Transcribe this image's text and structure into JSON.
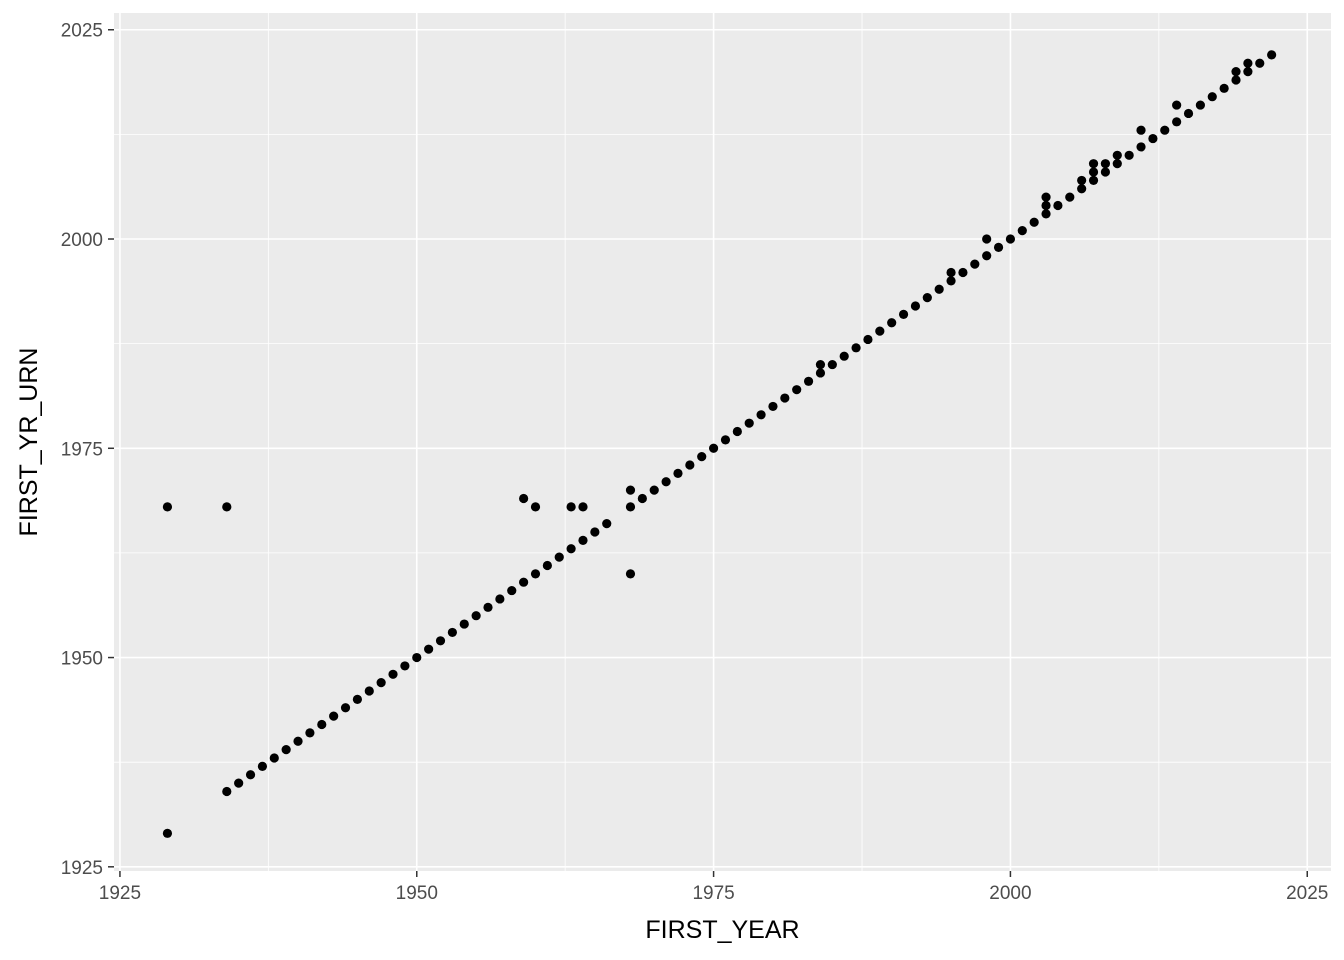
{
  "chart_data": {
    "type": "scatter",
    "title": "",
    "xlabel": "FIRST_YEAR",
    "ylabel": "FIRST_YR_URN",
    "xlim": [
      1924.5,
      2027
    ],
    "ylim": [
      1924.5,
      2027
    ],
    "x_ticks": [
      1925,
      1950,
      1975,
      2000,
      2025
    ],
    "y_ticks": [
      1925,
      1950,
      1975,
      2000,
      2025
    ],
    "x_tick_labels": [
      "1925",
      "1950",
      "1975",
      "2000",
      "2025"
    ],
    "y_tick_labels": [
      "1925",
      "1950",
      "1975",
      "2000",
      "2025"
    ],
    "grid": true,
    "colors": {
      "panel": "#ebebeb",
      "grid": "#ffffff",
      "point": "#000000"
    },
    "points": [
      [
        1929,
        1929
      ],
      [
        1929,
        1968
      ],
      [
        1934,
        1934
      ],
      [
        1934,
        1968
      ],
      [
        1935,
        1935
      ],
      [
        1936,
        1936
      ],
      [
        1937,
        1937
      ],
      [
        1938,
        1938
      ],
      [
        1939,
        1939
      ],
      [
        1940,
        1940
      ],
      [
        1941,
        1941
      ],
      [
        1942,
        1942
      ],
      [
        1943,
        1943
      ],
      [
        1944,
        1944
      ],
      [
        1945,
        1945
      ],
      [
        1946,
        1946
      ],
      [
        1947,
        1947
      ],
      [
        1948,
        1948
      ],
      [
        1949,
        1949
      ],
      [
        1950,
        1950
      ],
      [
        1951,
        1951
      ],
      [
        1952,
        1952
      ],
      [
        1953,
        1953
      ],
      [
        1954,
        1954
      ],
      [
        1955,
        1955
      ],
      [
        1956,
        1956
      ],
      [
        1957,
        1957
      ],
      [
        1958,
        1958
      ],
      [
        1959,
        1959
      ],
      [
        1959,
        1969
      ],
      [
        1960,
        1960
      ],
      [
        1960,
        1968
      ],
      [
        1961,
        1961
      ],
      [
        1962,
        1962
      ],
      [
        1963,
        1963
      ],
      [
        1963,
        1968
      ],
      [
        1964,
        1964
      ],
      [
        1964,
        1968
      ],
      [
        1965,
        1965
      ],
      [
        1966,
        1966
      ],
      [
        1968,
        1960
      ],
      [
        1968,
        1968
      ],
      [
        1968,
        1970
      ],
      [
        1969,
        1969
      ],
      [
        1970,
        1970
      ],
      [
        1971,
        1971
      ],
      [
        1972,
        1972
      ],
      [
        1973,
        1973
      ],
      [
        1974,
        1974
      ],
      [
        1975,
        1975
      ],
      [
        1976,
        1976
      ],
      [
        1977,
        1977
      ],
      [
        1978,
        1978
      ],
      [
        1979,
        1979
      ],
      [
        1980,
        1980
      ],
      [
        1981,
        1981
      ],
      [
        1982,
        1982
      ],
      [
        1983,
        1983
      ],
      [
        1984,
        1984
      ],
      [
        1984,
        1985
      ],
      [
        1985,
        1985
      ],
      [
        1986,
        1986
      ],
      [
        1987,
        1987
      ],
      [
        1988,
        1988
      ],
      [
        1989,
        1989
      ],
      [
        1990,
        1990
      ],
      [
        1991,
        1991
      ],
      [
        1992,
        1992
      ],
      [
        1993,
        1993
      ],
      [
        1994,
        1994
      ],
      [
        1995,
        1995
      ],
      [
        1995,
        1996
      ],
      [
        1996,
        1996
      ],
      [
        1997,
        1997
      ],
      [
        1998,
        1998
      ],
      [
        1998,
        2000
      ],
      [
        1999,
        1999
      ],
      [
        2000,
        2000
      ],
      [
        2001,
        2001
      ],
      [
        2002,
        2002
      ],
      [
        2003,
        2003
      ],
      [
        2003,
        2004
      ],
      [
        2003,
        2005
      ],
      [
        2004,
        2004
      ],
      [
        2005,
        2005
      ],
      [
        2006,
        2006
      ],
      [
        2006,
        2007
      ],
      [
        2007,
        2007
      ],
      [
        2007,
        2008
      ],
      [
        2007,
        2009
      ],
      [
        2008,
        2008
      ],
      [
        2008,
        2009
      ],
      [
        2009,
        2009
      ],
      [
        2009,
        2010
      ],
      [
        2010,
        2010
      ],
      [
        2011,
        2011
      ],
      [
        2011,
        2013
      ],
      [
        2012,
        2012
      ],
      [
        2013,
        2013
      ],
      [
        2014,
        2014
      ],
      [
        2014,
        2016
      ],
      [
        2015,
        2015
      ],
      [
        2016,
        2016
      ],
      [
        2017,
        2017
      ],
      [
        2018,
        2018
      ],
      [
        2019,
        2019
      ],
      [
        2019,
        2020
      ],
      [
        2020,
        2020
      ],
      [
        2020,
        2021
      ],
      [
        2021,
        2021
      ],
      [
        2022,
        2022
      ]
    ]
  }
}
